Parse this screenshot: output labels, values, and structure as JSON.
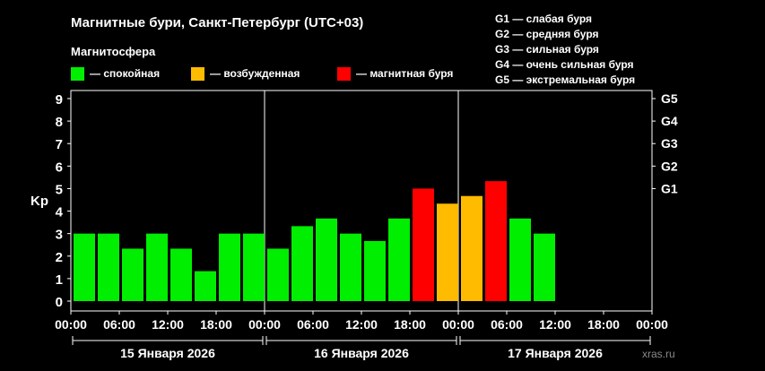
{
  "header": {
    "title": "Магнитные бури, Санкт-Петербург (UTC+03)",
    "subtitle": "Магнитосфера"
  },
  "legend": [
    {
      "label": "— спокойная",
      "color": "#00ee00"
    },
    {
      "label": "— возбужденная",
      "color": "#ffbb00"
    },
    {
      "label": "— магнитная буря",
      "color": "#ff0000"
    }
  ],
  "storm_levels": [
    "G1 — слабая буря",
    "G2 — средняя буря",
    "G3 — сильная буря",
    "G4 — очень сильная буря",
    "G5 — экстремальная буря"
  ],
  "watermark": "xras.ru",
  "colors": {
    "quiet": "#00ee00",
    "active": "#ffbb00",
    "storm": "#ff0000"
  },
  "chart_data": {
    "type": "bar",
    "ylabel": "Kp",
    "ylim": [
      0,
      9
    ],
    "yticks": [
      0,
      1,
      2,
      3,
      4,
      5,
      6,
      7,
      8,
      9
    ],
    "right_ticks": [
      {
        "value": 5,
        "label": "G1"
      },
      {
        "value": 6,
        "label": "G2"
      },
      {
        "value": 7,
        "label": "G3"
      },
      {
        "value": 8,
        "label": "G4"
      },
      {
        "value": 9,
        "label": "G5"
      }
    ],
    "xtick_labels": [
      "00:00",
      "06:00",
      "12:00",
      "18:00",
      "00:00",
      "06:00",
      "12:00",
      "18:00",
      "00:00",
      "06:00",
      "12:00",
      "18:00",
      "00:00"
    ],
    "days": [
      "15 Января 2026",
      "16 Января 2026",
      "17 Января 2026"
    ],
    "slots": 24,
    "bars": [
      {
        "value": 3.0,
        "level": "quiet"
      },
      {
        "value": 3.0,
        "level": "quiet"
      },
      {
        "value": 2.33,
        "level": "quiet"
      },
      {
        "value": 3.0,
        "level": "quiet"
      },
      {
        "value": 2.33,
        "level": "quiet"
      },
      {
        "value": 1.33,
        "level": "quiet"
      },
      {
        "value": 3.0,
        "level": "quiet"
      },
      {
        "value": 3.0,
        "level": "quiet"
      },
      {
        "value": 2.33,
        "level": "quiet"
      },
      {
        "value": 3.33,
        "level": "quiet"
      },
      {
        "value": 3.67,
        "level": "quiet"
      },
      {
        "value": 3.0,
        "level": "quiet"
      },
      {
        "value": 2.67,
        "level": "quiet"
      },
      {
        "value": 3.67,
        "level": "quiet"
      },
      {
        "value": 5.0,
        "level": "storm"
      },
      {
        "value": 4.33,
        "level": "active"
      },
      {
        "value": 4.67,
        "level": "active"
      },
      {
        "value": 5.33,
        "level": "storm"
      },
      {
        "value": 3.67,
        "level": "quiet"
      },
      {
        "value": 3.0,
        "level": "quiet"
      }
    ],
    "grid": false,
    "legend_position": "top-left"
  }
}
